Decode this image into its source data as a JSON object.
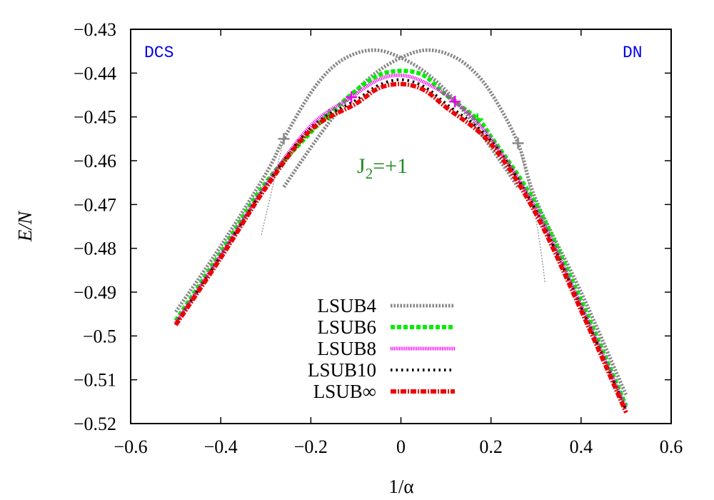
{
  "chart_data": {
    "type": "line",
    "title": "",
    "xlabel": "1/α",
    "ylabel": "E/N",
    "xlim": [
      -0.6,
      0.6
    ],
    "ylim": [
      -0.52,
      -0.43
    ],
    "xticks": [
      -0.6,
      -0.4,
      -0.2,
      0,
      0.2,
      0.4,
      0.6
    ],
    "xtick_labels": [
      "−0.6",
      "−0.4",
      "−0.2",
      "0",
      "0.2",
      "0.4",
      "0.6"
    ],
    "yticks": [
      -0.43,
      -0.44,
      -0.45,
      -0.46,
      -0.47,
      -0.48,
      -0.49,
      -0.5,
      -0.51,
      -0.52
    ],
    "ytick_labels": [
      "−0.43",
      "−0.44",
      "−0.45",
      "−0.46",
      "−0.47",
      "−0.48",
      "−0.49",
      "−0.5",
      "−0.51",
      "−0.52"
    ],
    "grid": false,
    "legend_position": "lower center",
    "annotations": [
      {
        "text": "DCS",
        "position": "top-left",
        "color": "#0000ee"
      },
      {
        "text": "DN",
        "position": "top-right",
        "color": "#0000ee"
      },
      {
        "text": "J2=+1",
        "x": -0.01,
        "y": -0.4575,
        "color": "#228b22"
      }
    ],
    "series": [
      {
        "name": "LSUB4",
        "color": "#888888",
        "style": "dotted-thick",
        "branches": [
          {
            "x": [
              -0.5,
              -0.4,
              -0.3,
              -0.26,
              -0.2,
              -0.15,
              -0.1,
              -0.05,
              0.0,
              0.05,
              0.1,
              0.15,
              0.2,
              0.26
            ],
            "y": [
              -0.4945,
              -0.4795,
              -0.463,
              -0.455,
              -0.4445,
              -0.4385,
              -0.4355,
              -0.4348,
              -0.4365,
              -0.4395,
              -0.444,
              -0.45,
              -0.457,
              -0.466
            ]
          },
          {
            "x": [
              -0.26,
              -0.2,
              -0.15,
              -0.1,
              -0.05,
              0.0,
              0.05,
              0.1,
              0.15,
              0.2,
              0.26,
              0.3,
              0.4,
              0.5
            ],
            "y": [
              -0.466,
              -0.457,
              -0.45,
              -0.444,
              -0.4395,
              -0.4365,
              -0.4348,
              -0.4355,
              -0.4385,
              -0.4445,
              -0.456,
              -0.469,
              -0.49,
              -0.5135
            ]
          }
        ],
        "unstable_tail": {
          "x": [
            -0.26,
            -0.285,
            -0.31
          ],
          "y": [
            -0.455,
            -0.466,
            -0.477
          ],
          "x_right": [
            0.26,
            0.29,
            0.31,
            0.32
          ],
          "y_right": [
            -0.456,
            -0.468,
            -0.48,
            -0.488
          ]
        },
        "markers": [
          {
            "x": -0.26,
            "y": -0.455
          },
          {
            "x": 0.26,
            "y": -0.456
          }
        ]
      },
      {
        "name": "LSUB6",
        "color": "#00ee00",
        "style": "dashed",
        "x": [
          -0.5,
          -0.4,
          -0.3,
          -0.2,
          -0.16,
          -0.1,
          -0.05,
          0.0,
          0.05,
          0.1,
          0.17,
          0.2,
          0.3,
          0.4,
          0.5
        ],
        "y": [
          -0.4965,
          -0.481,
          -0.465,
          -0.4535,
          -0.4495,
          -0.444,
          -0.4405,
          -0.4395,
          -0.4405,
          -0.445,
          -0.4505,
          -0.4545,
          -0.47,
          -0.492,
          -0.516
        ],
        "markers": [
          {
            "x": -0.16,
            "y": -0.4495
          },
          {
            "x": 0.17,
            "y": -0.4505
          }
        ]
      },
      {
        "name": "LSUB8",
        "color": "#ee00ee",
        "style": "fine-dotted",
        "x": [
          -0.5,
          -0.4,
          -0.3,
          -0.2,
          -0.11,
          -0.05,
          0.0,
          0.05,
          0.12,
          0.2,
          0.3,
          0.4,
          0.5
        ],
        "y": [
          -0.497,
          -0.4815,
          -0.4655,
          -0.452,
          -0.4455,
          -0.4415,
          -0.4405,
          -0.442,
          -0.4465,
          -0.455,
          -0.471,
          -0.493,
          -0.5165
        ],
        "markers": [
          {
            "x": -0.11,
            "y": -0.4455
          },
          {
            "x": 0.12,
            "y": -0.4465
          }
        ]
      },
      {
        "name": "LSUB10",
        "color": "#000000",
        "style": "dotted",
        "x": [
          -0.5,
          -0.4,
          -0.3,
          -0.2,
          -0.1,
          -0.05,
          0.0,
          0.05,
          0.1,
          0.2,
          0.3,
          0.4,
          0.5
        ],
        "y": [
          -0.4972,
          -0.4818,
          -0.4658,
          -0.4525,
          -0.4462,
          -0.4428,
          -0.4415,
          -0.443,
          -0.447,
          -0.4555,
          -0.4715,
          -0.4935,
          -0.517
        ]
      },
      {
        "name": "LSUB∞",
        "color": "#ee0000",
        "style": "dash-dot",
        "x": [
          -0.5,
          -0.4,
          -0.3,
          -0.2,
          -0.1,
          -0.05,
          0.0,
          0.05,
          0.1,
          0.2,
          0.3,
          0.4,
          0.5
        ],
        "y": [
          -0.4975,
          -0.4822,
          -0.4662,
          -0.453,
          -0.447,
          -0.4435,
          -0.4425,
          -0.4438,
          -0.4478,
          -0.4562,
          -0.4722,
          -0.4942,
          -0.5175
        ]
      }
    ]
  },
  "labels": {
    "xlabel": "1/α",
    "ylabel": "E/N",
    "dcs": "DCS",
    "dn": "DN",
    "j2_main": "J",
    "j2_sub": "2",
    "j2_rest": "=+1",
    "legend": [
      "LSUB4",
      "LSUB6",
      "LSUB8",
      "LSUB10",
      "LSUB∞"
    ]
  }
}
